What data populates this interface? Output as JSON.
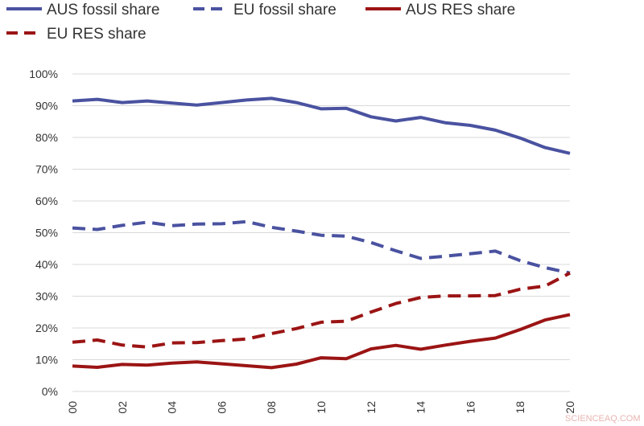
{
  "chart_data": {
    "type": "line",
    "title": "",
    "xlabel": "",
    "ylabel": "",
    "x": [
      2000,
      2001,
      2002,
      2003,
      2004,
      2005,
      2006,
      2007,
      2008,
      2009,
      2010,
      2011,
      2012,
      2013,
      2014,
      2015,
      2016,
      2017,
      2018,
      2019,
      2020
    ],
    "x_tick_labels": [
      "00",
      "02",
      "04",
      "06",
      "08",
      "10",
      "12",
      "14",
      "16",
      "18",
      "20"
    ],
    "x_tick_values": [
      2000,
      2002,
      2004,
      2006,
      2008,
      2010,
      2012,
      2014,
      2016,
      2018,
      2020
    ],
    "ylim": [
      0,
      100
    ],
    "y_ticks": [
      0,
      10,
      20,
      30,
      40,
      50,
      60,
      70,
      80,
      90,
      100
    ],
    "y_tick_labels": [
      "0%",
      "10%",
      "20%",
      "30%",
      "40%",
      "50%",
      "60%",
      "70%",
      "80%",
      "90%",
      "100%"
    ],
    "grid": "horizontal",
    "legend_position": "top",
    "series": [
      {
        "name": "AUS fossil share",
        "color": "#4a52a0",
        "dash": "solid",
        "values": [
          91.5,
          92,
          91,
          91.5,
          90.8,
          90.2,
          91,
          91.8,
          92.3,
          91,
          89,
          89.2,
          86.5,
          85.2,
          86.3,
          84.6,
          83.8,
          82.3,
          79.8,
          76.8,
          75
        ]
      },
      {
        "name": "EU fossil share",
        "color": "#4a52a0",
        "dash": "dashed",
        "values": [
          51.5,
          51,
          52.3,
          53.3,
          52.2,
          52.7,
          52.8,
          53.5,
          51.7,
          50.5,
          49.2,
          48.9,
          46.9,
          44.3,
          41.9,
          42.6,
          43.4,
          44.2,
          41.2,
          39,
          37.3
        ]
      },
      {
        "name": "AUS RES share",
        "color": "#9b1414",
        "dash": "solid",
        "values": [
          8,
          7.6,
          8.5,
          8.3,
          8.9,
          9.3,
          8.7,
          8.1,
          7.5,
          8.6,
          10.6,
          10.3,
          13.4,
          14.5,
          13.3,
          14.6,
          15.8,
          16.8,
          19.5,
          22.5,
          24.2
        ]
      },
      {
        "name": "EU RES share",
        "color": "#9b1414",
        "dash": "dashed",
        "values": [
          15.5,
          16.2,
          14.6,
          14,
          15.3,
          15.4,
          16,
          16.5,
          18.2,
          19.8,
          21.8,
          22.1,
          25,
          27.7,
          29.6,
          30.1,
          30.1,
          30.2,
          32.2,
          33.2,
          37.3
        ]
      }
    ]
  },
  "watermark": "SCIENCEAQ.COM"
}
